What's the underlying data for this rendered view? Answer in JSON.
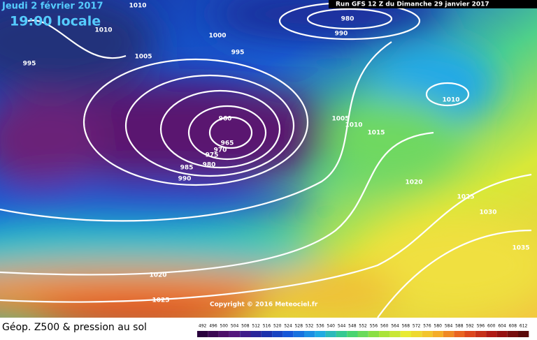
{
  "header": {
    "date": "Jeudi 2 février 2017",
    "time": "19:00 locale",
    "run": "Run GFS 12 Z du Dimanche 29 janvier 2017"
  },
  "isobar_labels": [
    1010,
    1010,
    1000,
    995,
    1005,
    995,
    980,
    990,
    960,
    965,
    970,
    975,
    980,
    985,
    990,
    1005,
    1010,
    1015,
    1010,
    1020,
    1025,
    1030,
    1035,
    1020,
    1025
  ],
  "copyright": "Copyright © 2016 Meteociel.fr",
  "footer": {
    "title": "Géop. Z500 & pression au sol",
    "scale": [
      492,
      496,
      500,
      504,
      508,
      512,
      516,
      520,
      524,
      528,
      532,
      536,
      540,
      544,
      548,
      552,
      556,
      560,
      564,
      568,
      572,
      576,
      580,
      584,
      588,
      592,
      596,
      600,
      604,
      608,
      612
    ]
  }
}
